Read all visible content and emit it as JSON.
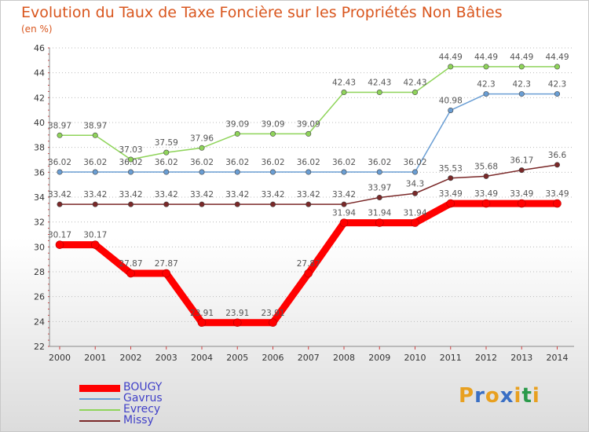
{
  "header": {
    "title": "Evolution du Taux de Taxe Foncière sur les Propriétés Non Bâties",
    "unit": "(en %)"
  },
  "logo": {
    "text": "Proxiti",
    "colors": [
      "#e8a020",
      "#3a6fc4",
      "#e8a020",
      "#3a6fc4",
      "#e8a020",
      "#2a9a4a",
      "#e8a020"
    ]
  },
  "chart_data": {
    "type": "line",
    "title": "Evolution du Taux de Taxe Foncière sur les Propriétés Non Bâties",
    "ylabel": "(en %)",
    "xlabel": "",
    "x": [
      "2000",
      "2001",
      "2002",
      "2003",
      "2004",
      "2005",
      "2006",
      "2007",
      "2008",
      "2009",
      "2010",
      "2011",
      "2012",
      "2013",
      "2014"
    ],
    "ylim": [
      22,
      46
    ],
    "yticks": [
      22,
      24,
      26,
      28,
      30,
      32,
      34,
      36,
      38,
      40,
      42,
      44,
      46
    ],
    "grid": "horizontal dotted",
    "legend_position": "bottom-left",
    "series": [
      {
        "name": "BOUGY",
        "color": "#ff0000",
        "values": [
          30.17,
          30.17,
          27.87,
          27.87,
          23.91,
          23.91,
          23.91,
          27.87,
          31.94,
          31.94,
          31.94,
          33.49,
          33.49,
          33.49,
          33.49
        ],
        "labels": [
          "30.17",
          "30.17",
          "27.87",
          "27.87",
          "23.91",
          "23.91",
          "23.91",
          "27.87",
          "31.94",
          "31.94",
          "31.94",
          "33.49",
          "33.49",
          "33.49",
          "33.49"
        ]
      },
      {
        "name": "Gavrus",
        "color": "#6a9ed4",
        "values": [
          36.02,
          36.02,
          36.02,
          36.02,
          36.02,
          36.02,
          36.02,
          36.02,
          36.02,
          36.02,
          36.02,
          40.98,
          42.3,
          42.3,
          42.3
        ],
        "labels": [
          "36.02",
          "36.02",
          "36.02",
          "36.02",
          "36.02",
          "36.02",
          "36.02",
          "36.02",
          "36.02",
          "36.02",
          "36.02",
          "40.98",
          "42.3",
          "42.3",
          "42.3"
        ]
      },
      {
        "name": "Evrecy",
        "color": "#8fd45a",
        "values": [
          38.97,
          38.97,
          37.03,
          37.59,
          37.96,
          39.09,
          39.09,
          39.09,
          42.43,
          42.43,
          42.43,
          44.49,
          44.49,
          44.49,
          44.49
        ],
        "labels": [
          "38.97",
          "38.97",
          "37.03",
          "37.59",
          "37.96",
          "39.09",
          "39.09",
          "39.09",
          "42.43",
          "42.43",
          "42.43",
          "44.49",
          "44.49",
          "44.49",
          "44.49"
        ]
      },
      {
        "name": "Missy",
        "color": "#7a2828",
        "values": [
          33.42,
          33.42,
          33.42,
          33.42,
          33.42,
          33.42,
          33.42,
          33.42,
          33.42,
          33.97,
          34.3,
          35.53,
          35.68,
          36.17,
          36.6
        ],
        "labels": [
          "33.42",
          "33.42",
          "33.42",
          "33.42",
          "33.42",
          "33.42",
          "33.42",
          "33.42",
          "33.42",
          "33.97",
          "34.3",
          "35.53",
          "35.68",
          "36.17",
          "36.6"
        ]
      }
    ]
  }
}
